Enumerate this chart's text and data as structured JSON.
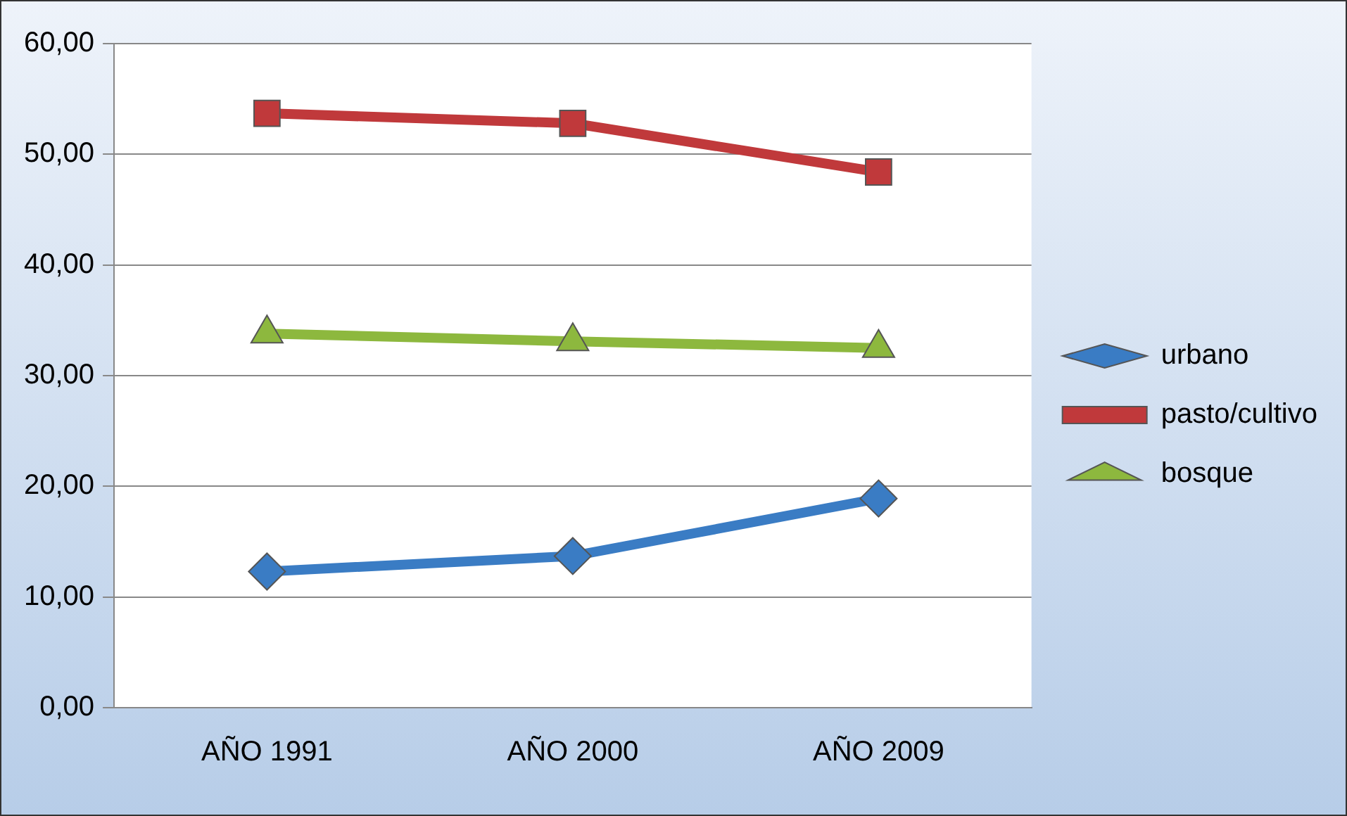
{
  "chart_data": {
    "type": "line",
    "categories": [
      "AÑO 1991",
      "AÑO 2000",
      "AÑO 2009"
    ],
    "series": [
      {
        "name": "urbano",
        "color": "#3a7cc4",
        "values": [
          12.3,
          13.7,
          18.9
        ],
        "marker": "diamond"
      },
      {
        "name": "pasto/cultivo",
        "color": "#c0393b",
        "values": [
          53.7,
          52.8,
          48.4
        ],
        "marker": "square"
      },
      {
        "name": "bosque",
        "color": "#8db83e",
        "values": [
          33.8,
          33.1,
          32.5
        ],
        "marker": "triangle"
      }
    ],
    "ylim": [
      0,
      60
    ],
    "yticks": [
      {
        "value": 0,
        "label": "0,00"
      },
      {
        "value": 10,
        "label": "10,00"
      },
      {
        "value": 20,
        "label": "20,00"
      },
      {
        "value": 30,
        "label": "30,00"
      },
      {
        "value": 40,
        "label": "40,00"
      },
      {
        "value": 50,
        "label": "50,00"
      },
      {
        "value": 60,
        "label": "60,00"
      }
    ],
    "grid": "y",
    "legend": "right",
    "line_style": "solid"
  }
}
